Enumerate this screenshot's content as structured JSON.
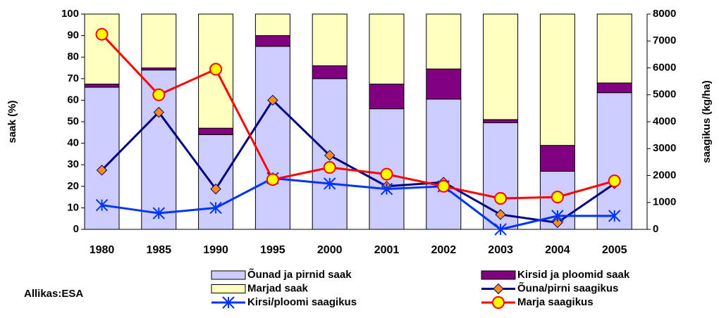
{
  "chart_data": {
    "type": "bar",
    "stacked": true,
    "categories": [
      "1980",
      "1985",
      "1990",
      "1995",
      "2000",
      "2001",
      "2002",
      "2003",
      "2004",
      "2005"
    ],
    "ylabel": "saak (%)",
    "y2label": "saagikus (kg/ha)",
    "source": "Allikas:ESA",
    "ylim": [
      0,
      100
    ],
    "yticks": [
      0,
      10,
      20,
      30,
      40,
      50,
      60,
      70,
      80,
      90,
      100
    ],
    "y2lim": [
      0,
      8000
    ],
    "y2ticks": [
      0,
      1000,
      2000,
      3000,
      4000,
      5000,
      6000,
      7000,
      8000
    ],
    "series": [
      {
        "name": "Õunad ja pirnid saak",
        "type": "bar",
        "color": "#ccccff",
        "values": [
          66,
          74,
          44,
          85,
          70,
          56,
          60.5,
          49.5,
          27,
          63.5
        ]
      },
      {
        "name": "Kirsid ja ploomid saak",
        "type": "bar",
        "color": "#800080",
        "values": [
          1.5,
          1,
          3,
          5,
          6,
          11.5,
          14,
          1.5,
          12,
          4.5
        ]
      },
      {
        "name": "Marjad saak",
        "type": "bar",
        "color": "#ffffc0",
        "values": [
          32.5,
          25,
          53,
          10,
          24,
          32.5,
          25.5,
          49,
          61,
          32
        ]
      },
      {
        "name": "Õuna/pirni saagikus",
        "type": "line",
        "axis": "y2",
        "color": "#000080",
        "marker": "diamond",
        "marker_color": "#ff8c1a",
        "values": [
          2200,
          4350,
          1500,
          4800,
          2750,
          1600,
          1750,
          550,
          250,
          1700
        ]
      },
      {
        "name": "Kirsi/ploomi saagikus",
        "type": "line",
        "axis": "y2",
        "color": "#0033ff",
        "marker": "star",
        "marker_color": "#0033ff",
        "values": [
          900,
          600,
          800,
          1900,
          1700,
          1500,
          1600,
          0,
          500,
          500
        ]
      },
      {
        "name": "Marja saagikus",
        "type": "line",
        "axis": "y2",
        "color": "#ff0000",
        "marker": "circle",
        "marker_color": "#ffff00",
        "values": [
          7250,
          5000,
          5950,
          1850,
          2300,
          2050,
          1600,
          1150,
          1200,
          1800
        ]
      }
    ]
  }
}
